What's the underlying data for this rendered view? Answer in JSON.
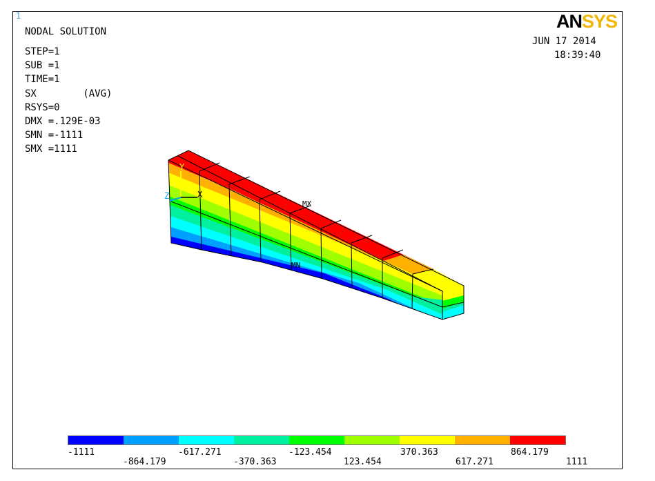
{
  "window_number": "1",
  "logo": {
    "part1": "AN",
    "part2": "SYS"
  },
  "info_lines": [
    "NODAL SOLUTION",
    "STEP=1",
    "SUB =1",
    "TIME=1",
    "SX        (AVG)",
    "RSYS=0",
    "DMX =.129E-03",
    "SMN =-1111",
    "SMX =1111"
  ],
  "date": "JUN 17 2014",
  "time": "18:39:40",
  "triad": {
    "y": "Y",
    "x": "X",
    "z": "Z"
  },
  "markers": {
    "max": "MX",
    "min": "MN"
  },
  "legend": {
    "colors": [
      "#0000ff",
      "#00a0ff",
      "#00ffff",
      "#00f0a0",
      "#00ff00",
      "#a0ff00",
      "#ffff00",
      "#ffb000",
      "#ff0000"
    ],
    "labels": [
      "-1111",
      "-864.179",
      "-617.271",
      "-370.363",
      "-123.454",
      "123.454",
      "370.363",
      "617.271",
      "864.179",
      "1111"
    ]
  }
}
